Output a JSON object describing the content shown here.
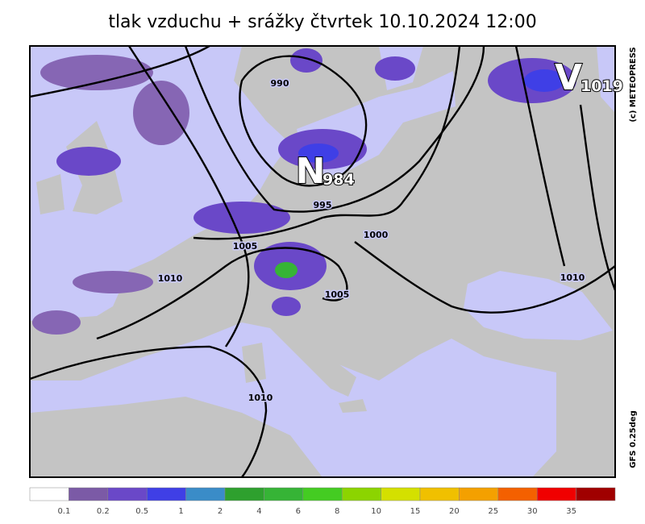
{
  "title": "tlak vzduchu + srážky čtvrtek 10.10.2024 12:00",
  "copyright": "(c) METEOPRESS",
  "model": "GFS 0.25deg",
  "pressure_centers": [
    {
      "letter": "N",
      "value": 984
    },
    {
      "letter": "V",
      "value": 1019
    }
  ],
  "isobar_labels": [
    990,
    995,
    1005,
    1000,
    1010,
    1005,
    1010,
    1010
  ],
  "legend": {
    "colors": [
      "#ffffff",
      "#7b5aa6",
      "#6a48c8",
      "#3f3fe6",
      "#3a8cc8",
      "#2ea02e",
      "#36b436",
      "#44cc22",
      "#8cd400",
      "#d4e000",
      "#f0c000",
      "#f4a000",
      "#f46000",
      "#f00000",
      "#a00000"
    ],
    "labels": [
      0.1,
      0.2,
      0.5,
      1,
      2,
      4,
      6,
      8,
      10,
      15,
      20,
      25,
      30,
      35
    ]
  }
}
